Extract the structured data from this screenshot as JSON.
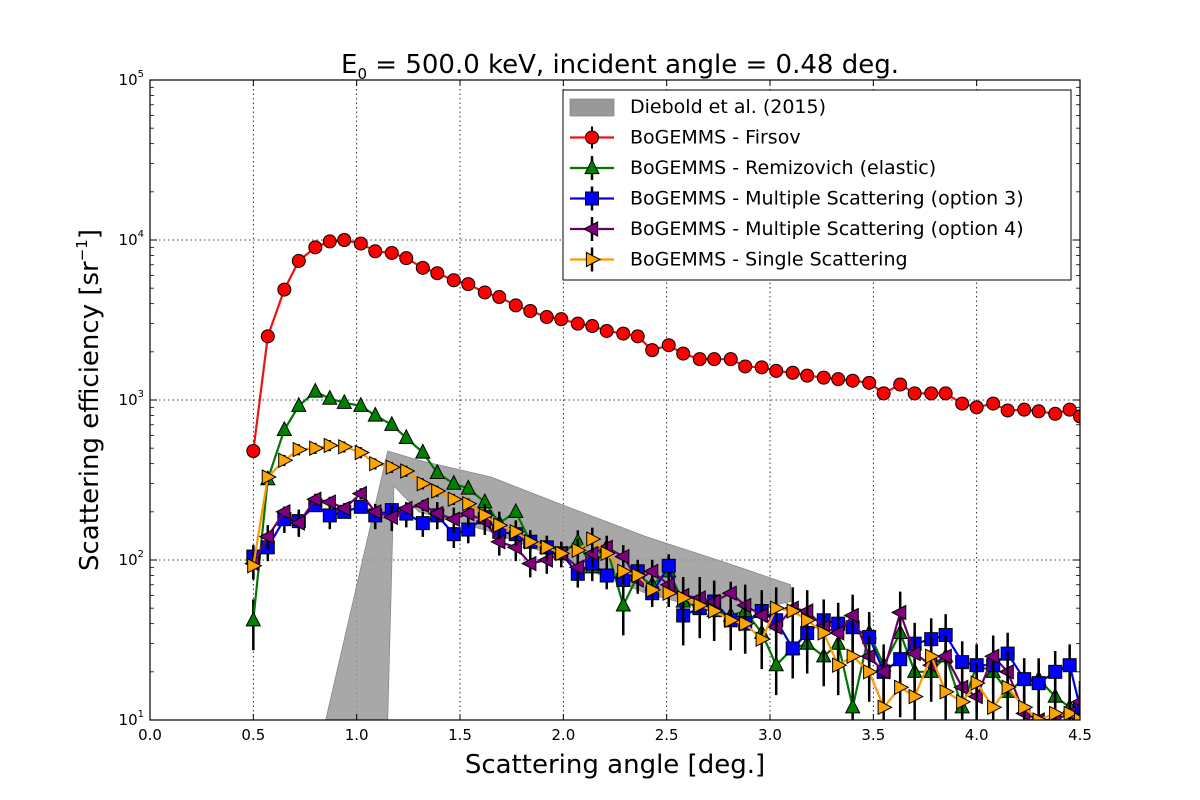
{
  "chart_data": {
    "type": "scatter",
    "title_main": "E",
    "title_sub": "0",
    "title_rest": " = 500.0 keV, incident angle = 0.48 deg.",
    "xlabel": "Scattering angle [deg.]",
    "ylabel_main": "Scattering efficiency [sr",
    "ylabel_sup": "−1",
    "ylabel_end": "]",
    "xlim": [
      0.0,
      4.5
    ],
    "ylim": [
      10,
      100000
    ],
    "yscale": "log",
    "grid": true,
    "legend_position": "top-right",
    "x_ticks": [
      "0.0",
      "0.5",
      "1.0",
      "1.5",
      "2.0",
      "2.5",
      "3.0",
      "3.5",
      "4.0",
      "4.5"
    ],
    "y_ticks": [
      {
        "base": "10",
        "exp": "1"
      },
      {
        "base": "10",
        "exp": "2"
      },
      {
        "base": "10",
        "exp": "3"
      },
      {
        "base": "10",
        "exp": "4"
      },
      {
        "base": "10",
        "exp": "5"
      }
    ],
    "band": {
      "name": "Diebold et al. (2015)",
      "color": "#999999",
      "upper": [
        [
          0.85,
          10
        ],
        [
          1.15,
          480
        ],
        [
          1.3,
          420
        ],
        [
          1.65,
          330
        ],
        [
          2.0,
          220
        ],
        [
          2.4,
          140
        ],
        [
          2.8,
          95
        ],
        [
          3.1,
          70
        ]
      ],
      "lower": [
        [
          3.1,
          55
        ],
        [
          2.8,
          45
        ],
        [
          2.4,
          62
        ],
        [
          2.0,
          100
        ],
        [
          1.65,
          150
        ],
        [
          1.3,
          200
        ],
        [
          1.18,
          290
        ],
        [
          1.15,
          10
        ]
      ]
    },
    "series": [
      {
        "name": "BoGEMMS - Firsov",
        "color": "#ff0000",
        "line_color": "#ee1111",
        "marker": "circle",
        "x": [
          0.5,
          0.57,
          0.65,
          0.72,
          0.8,
          0.87,
          0.94,
          1.02,
          1.09,
          1.17,
          1.24,
          1.32,
          1.39,
          1.47,
          1.54,
          1.62,
          1.69,
          1.77,
          1.84,
          1.92,
          1.99,
          2.07,
          2.14,
          2.21,
          2.29,
          2.36,
          2.43,
          2.51,
          2.58,
          2.66,
          2.73,
          2.81,
          2.88,
          2.96,
          3.03,
          3.11,
          3.18,
          3.26,
          3.33,
          3.4,
          3.48,
          3.55,
          3.63,
          3.7,
          3.78,
          3.85,
          3.93,
          4.0,
          4.08,
          4.15,
          4.23,
          4.3,
          4.38,
          4.45,
          4.5
        ],
        "y": [
          480,
          2500,
          4900,
          7400,
          9000,
          9800,
          10000,
          9500,
          8500,
          8300,
          7700,
          6700,
          6200,
          5600,
          5300,
          4700,
          4400,
          3900,
          3600,
          3300,
          3200,
          3000,
          2900,
          2700,
          2600,
          2500,
          2050,
          2200,
          1950,
          1800,
          1800,
          1800,
          1620,
          1600,
          1520,
          1480,
          1420,
          1380,
          1350,
          1320,
          1280,
          1100,
          1250,
          1100,
          1100,
          1100,
          950,
          900,
          950,
          860,
          870,
          850,
          820,
          870,
          790
        ]
      },
      {
        "name": "BoGEMMS - Remizovich (elastic)",
        "color": "#008000",
        "line_color": "#007700",
        "marker": "triangle-up",
        "x": [
          0.5,
          0.57,
          0.65,
          0.72,
          0.8,
          0.87,
          0.94,
          1.02,
          1.09,
          1.17,
          1.24,
          1.32,
          1.39,
          1.47,
          1.54,
          1.62,
          1.69,
          1.77,
          1.84,
          1.92,
          1.99,
          2.07,
          2.14,
          2.21,
          2.29,
          2.36,
          2.43,
          2.51,
          2.58,
          2.66,
          2.73,
          2.81,
          2.88,
          2.96,
          3.03,
          3.11,
          3.18,
          3.26,
          3.33,
          3.4,
          3.48,
          3.55,
          3.63,
          3.7,
          3.78,
          3.85,
          3.93,
          4.0,
          4.08,
          4.15,
          4.23,
          4.3,
          4.38,
          4.45,
          4.5
        ],
        "y": [
          42,
          320,
          650,
          920,
          1130,
          1020,
          960,
          920,
          800,
          700,
          580,
          470,
          350,
          300,
          280,
          230,
          170,
          200,
          130,
          120,
          110,
          130,
          90,
          120,
          52,
          80,
          70,
          85,
          55,
          50,
          48,
          45,
          48,
          35,
          22,
          28,
          30,
          25,
          30,
          12,
          35,
          22,
          35,
          20,
          20,
          25,
          12,
          22,
          20,
          15,
          18,
          18,
          14,
          12,
          10
        ]
      },
      {
        "name": "BoGEMMS - Multiple Scattering (option 3)",
        "color": "#0000ff",
        "line_color": "#0000dd",
        "marker": "square",
        "x": [
          0.5,
          0.57,
          0.65,
          0.72,
          0.8,
          0.87,
          0.94,
          1.02,
          1.09,
          1.17,
          1.24,
          1.32,
          1.39,
          1.47,
          1.54,
          1.62,
          1.69,
          1.77,
          1.84,
          1.92,
          1.99,
          2.07,
          2.14,
          2.21,
          2.29,
          2.36,
          2.43,
          2.51,
          2.58,
          2.66,
          2.73,
          2.81,
          2.88,
          2.96,
          3.03,
          3.11,
          3.18,
          3.26,
          3.33,
          3.4,
          3.48,
          3.55,
          3.63,
          3.7,
          3.78,
          3.85,
          3.93,
          4.0,
          4.08,
          4.15,
          4.23,
          4.3,
          4.38,
          4.45,
          4.5
        ],
        "y": [
          105,
          120,
          180,
          175,
          220,
          190,
          200,
          215,
          190,
          205,
          195,
          170,
          190,
          145,
          155,
          185,
          150,
          145,
          130,
          120,
          110,
          82,
          95,
          80,
          75,
          85,
          62,
          92,
          45,
          50,
          55,
          42,
          40,
          48,
          42,
          28,
          35,
          42,
          40,
          38,
          33,
          20,
          24,
          30,
          32,
          34,
          23,
          22,
          22,
          26,
          18,
          17,
          20,
          22,
          12
        ]
      },
      {
        "name": "BoGEMMS - Multiple Scattering (option 4)",
        "color": "#800080",
        "line_color": "#660066",
        "marker": "triangle-left",
        "x": [
          0.5,
          0.57,
          0.65,
          0.72,
          0.8,
          0.87,
          0.94,
          1.02,
          1.09,
          1.17,
          1.24,
          1.32,
          1.39,
          1.47,
          1.54,
          1.62,
          1.69,
          1.77,
          1.84,
          1.92,
          1.99,
          2.07,
          2.14,
          2.21,
          2.29,
          2.36,
          2.43,
          2.51,
          2.58,
          2.66,
          2.73,
          2.81,
          2.88,
          2.96,
          3.03,
          3.11,
          3.18,
          3.26,
          3.33,
          3.4,
          3.48,
          3.55,
          3.63,
          3.7,
          3.78,
          3.85,
          3.93,
          4.0,
          4.08,
          4.15,
          4.23,
          4.3,
          4.38,
          4.45,
          4.5
        ],
        "y": [
          95,
          140,
          200,
          170,
          240,
          230,
          210,
          260,
          200,
          185,
          210,
          220,
          195,
          180,
          195,
          175,
          130,
          120,
          95,
          100,
          110,
          90,
          110,
          120,
          105,
          75,
          85,
          70,
          60,
          58,
          55,
          62,
          52,
          45,
          38,
          50,
          48,
          38,
          35,
          45,
          25,
          20,
          47,
          26,
          22,
          25,
          16,
          14,
          25,
          20,
          11,
          10,
          10,
          11,
          13
        ]
      },
      {
        "name": "BoGEMMS - Single Scattering",
        "color": "#ffa500",
        "line_color": "#ff9900",
        "marker": "triangle-right",
        "x": [
          0.5,
          0.57,
          0.65,
          0.72,
          0.8,
          0.87,
          0.94,
          1.02,
          1.09,
          1.17,
          1.24,
          1.32,
          1.39,
          1.47,
          1.54,
          1.62,
          1.69,
          1.77,
          1.84,
          1.92,
          1.99,
          2.07,
          2.14,
          2.21,
          2.29,
          2.36,
          2.43,
          2.51,
          2.58,
          2.66,
          2.73,
          2.81,
          2.88,
          2.96,
          3.03,
          3.11,
          3.18,
          3.26,
          3.33,
          3.4,
          3.48,
          3.55,
          3.63,
          3.7,
          3.78,
          3.85,
          3.93,
          4.0,
          4.08,
          4.15,
          4.23,
          4.3,
          4.38,
          4.45,
          4.5
        ],
        "y": [
          92,
          330,
          420,
          490,
          500,
          520,
          510,
          470,
          400,
          380,
          360,
          300,
          270,
          240,
          225,
          190,
          165,
          150,
          130,
          120,
          110,
          115,
          135,
          110,
          85,
          80,
          65,
          62,
          58,
          52,
          48,
          42,
          40,
          32,
          50,
          48,
          42,
          35,
          22,
          25,
          20,
          12,
          16,
          14,
          25,
          15,
          13,
          17,
          12,
          16,
          12,
          10,
          11,
          11,
          10
        ]
      }
    ]
  }
}
